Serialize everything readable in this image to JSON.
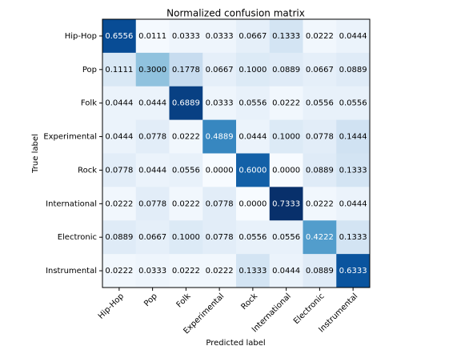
{
  "chart_data": {
    "type": "heatmap",
    "title": "Normalized confusion matrix",
    "xlabel": "Predicted label",
    "ylabel": "True label",
    "categories": [
      "Hip-Hop",
      "Pop",
      "Folk",
      "Experimental",
      "Rock",
      "International",
      "Electronic",
      "Instrumental"
    ],
    "colormap": "Blues",
    "values": [
      [
        0.6556,
        0.0111,
        0.0333,
        0.0333,
        0.0667,
        0.1333,
        0.0222,
        0.0444
      ],
      [
        0.1111,
        0.3,
        0.1778,
        0.0667,
        0.1,
        0.0889,
        0.0667,
        0.0889
      ],
      [
        0.0444,
        0.0444,
        0.6889,
        0.0333,
        0.0556,
        0.0222,
        0.0556,
        0.0556
      ],
      [
        0.0444,
        0.0778,
        0.0222,
        0.4889,
        0.0444,
        0.1,
        0.0778,
        0.1444
      ],
      [
        0.0778,
        0.0444,
        0.0556,
        0,
        0.6,
        0,
        0.0889,
        0.1333
      ],
      [
        0.0222,
        0.0778,
        0.0222,
        0.0778,
        0,
        0.7333,
        0.0222,
        0.0444
      ],
      [
        0.0889,
        0.0667,
        0.1,
        0.0778,
        0.0556,
        0.0556,
        0.4222,
        0.1333
      ],
      [
        0.0222,
        0.0333,
        0.0222,
        0.0222,
        0.1333,
        0.0444,
        0.0889,
        0.6333
      ]
    ],
    "value_labels": [
      [
        "0.6556",
        "0.0111",
        "0.0333",
        "0.0333",
        "0.0667",
        "0.1333",
        "0.0222",
        "0.0444"
      ],
      [
        "0.1111",
        "0.3000",
        "0.1778",
        "0.0667",
        "0.1000",
        "0.0889",
        "0.0667",
        "0.0889"
      ],
      [
        "0.0444",
        "0.0444",
        "0.6889",
        "0.0333",
        "0.0556",
        "0.0222",
        "0.0556",
        "0.0556"
      ],
      [
        "0.0444",
        "0.0778",
        "0.0222",
        "0.4889",
        "0.0444",
        "0.1000",
        "0.0778",
        "0.1444"
      ],
      [
        "0.0778",
        "0.0444",
        "0.0556",
        "0.0000",
        "0.6000",
        "0.0000",
        "0.0889",
        "0.1333"
      ],
      [
        "0.0222",
        "0.0778",
        "0.0222",
        "0.0778",
        "0.0000",
        "0.7333",
        "0.0222",
        "0.0444"
      ],
      [
        "0.0889",
        "0.0667",
        "0.1000",
        "0.0778",
        "0.0556",
        "0.0556",
        "0.4222",
        "0.1333"
      ],
      [
        "0.0222",
        "0.0333",
        "0.0222",
        "0.0222",
        "0.1333",
        "0.0444",
        "0.0889",
        "0.6333"
      ]
    ]
  }
}
